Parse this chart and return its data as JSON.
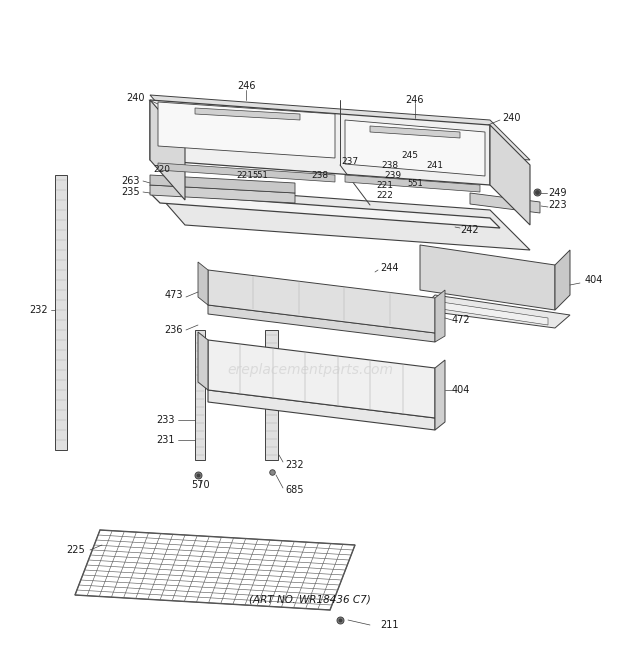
{
  "bg_color": "#ffffff",
  "fig_width": 6.2,
  "fig_height": 6.61,
  "watermark": "ereplacementparts.com",
  "art_no": "(ART NO. WR18436 C7)",
  "line_color": "#404040",
  "gray_fill": "#d8d8d8",
  "light_fill": "#f0f0f0",
  "mid_fill": "#e0e0e0"
}
